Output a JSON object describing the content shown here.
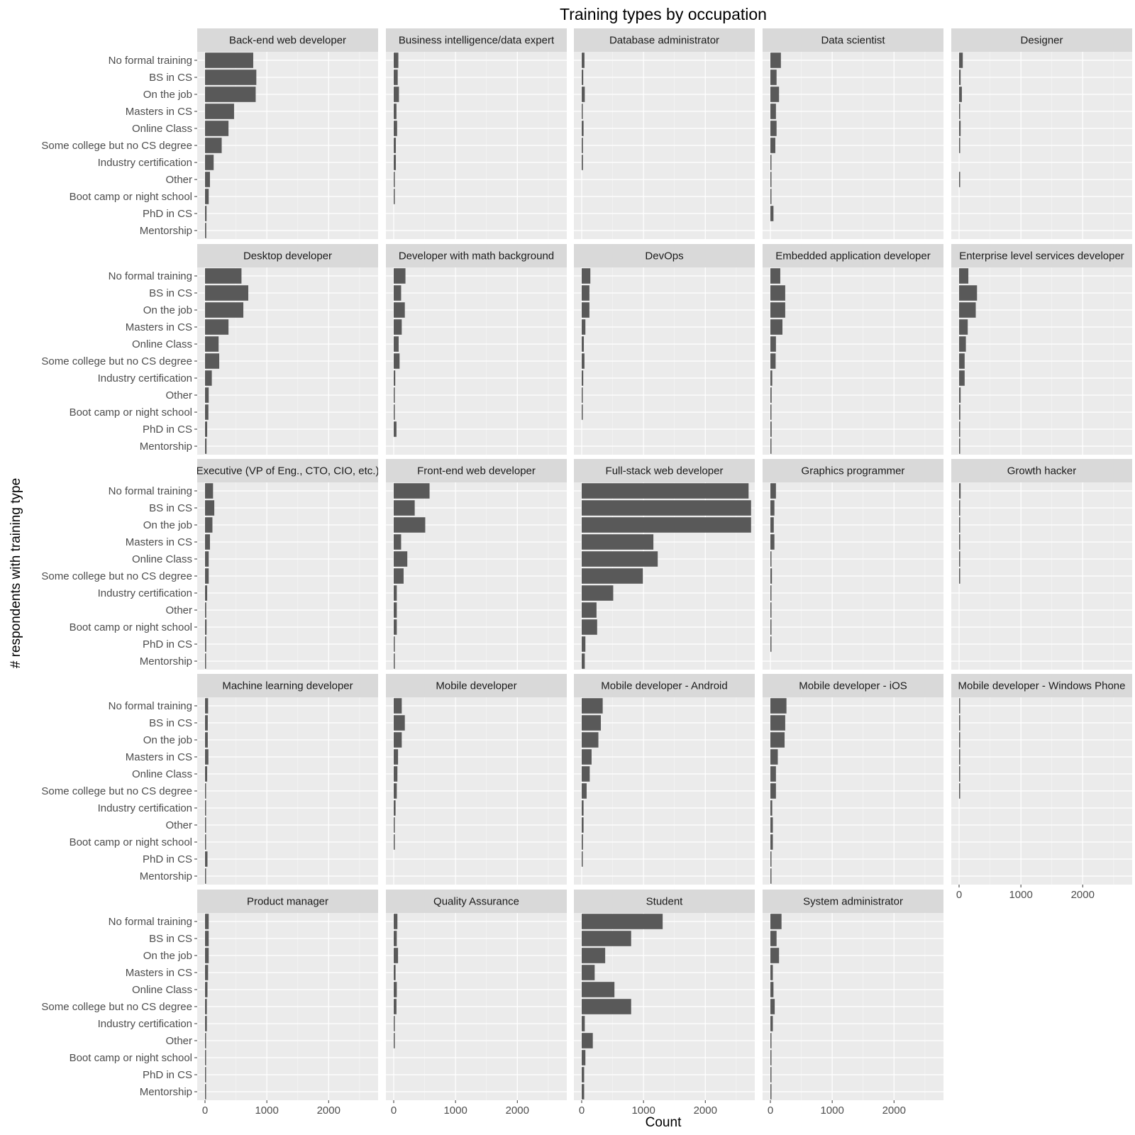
{
  "chart_data": {
    "type": "bar",
    "title": "Training types by occupation",
    "xlabel": "Count",
    "ylabel": "# respondents with training type",
    "xlim": [
      0,
      2800
    ],
    "xticks": [
      0,
      1000,
      2000
    ],
    "grid": true,
    "categories": [
      "No formal training",
      "BS in CS",
      "On the job",
      "Masters in CS",
      "Online Class",
      "Some college  but no CS degree",
      "Industry certification",
      "Other",
      "Boot camp or night school",
      "PhD in CS",
      "Mentorship"
    ],
    "panels": [
      {
        "name": "Back-end web developer",
        "values": [
          780,
          830,
          820,
          470,
          380,
          270,
          140,
          80,
          60,
          25,
          20
        ]
      },
      {
        "name": "Business intelligence/data expert",
        "values": [
          75,
          65,
          85,
          45,
          55,
          35,
          35,
          15,
          10,
          0,
          0
        ]
      },
      {
        "name": "Database administrator",
        "values": [
          45,
          25,
          50,
          15,
          30,
          20,
          20,
          0,
          0,
          0,
          0
        ]
      },
      {
        "name": "Data scientist",
        "values": [
          170,
          100,
          140,
          90,
          100,
          80,
          10,
          10,
          10,
          50,
          0
        ]
      },
      {
        "name": "Designer",
        "values": [
          60,
          25,
          45,
          15,
          25,
          15,
          0,
          15,
          0,
          0,
          0
        ]
      },
      {
        "name": "Desktop developer",
        "values": [
          590,
          700,
          620,
          380,
          220,
          230,
          110,
          60,
          55,
          35,
          25
        ]
      },
      {
        "name": "Developer with math background",
        "values": [
          190,
          120,
          180,
          130,
          80,
          95,
          25,
          10,
          15,
          45,
          0
        ]
      },
      {
        "name": "DevOps",
        "values": [
          140,
          125,
          125,
          60,
          35,
          45,
          25,
          10,
          15,
          0,
          0
        ]
      },
      {
        "name": "Embedded application developer",
        "values": [
          160,
          240,
          240,
          195,
          90,
          85,
          30,
          20,
          15,
          20,
          10
        ]
      },
      {
        "name": "Enterprise level services developer",
        "values": [
          150,
          290,
          270,
          140,
          110,
          90,
          90,
          25,
          20,
          15,
          10
        ]
      },
      {
        "name": "Executive (VP of Eng., CTO, CIO, etc.)",
        "values": [
          130,
          150,
          120,
          80,
          60,
          60,
          35,
          20,
          25,
          20,
          10
        ]
      },
      {
        "name": "Front-end web developer",
        "values": [
          580,
          340,
          510,
          120,
          220,
          160,
          50,
          50,
          50,
          10,
          10
        ]
      },
      {
        "name": "Full-stack web developer",
        "values": [
          2700,
          2740,
          2740,
          1160,
          1230,
          990,
          510,
          240,
          250,
          60,
          50
        ]
      },
      {
        "name": "Graphics programmer",
        "values": [
          90,
          65,
          55,
          65,
          15,
          25,
          10,
          10,
          10,
          10,
          0
        ]
      },
      {
        "name": "Growth hacker",
        "values": [
          25,
          15,
          15,
          10,
          10,
          10,
          0,
          0,
          0,
          0,
          0
        ]
      },
      {
        "name": "Machine learning developer",
        "values": [
          50,
          45,
          45,
          55,
          35,
          10,
          10,
          10,
          10,
          40,
          5
        ]
      },
      {
        "name": "Mobile developer",
        "values": [
          130,
          180,
          130,
          70,
          60,
          50,
          30,
          10,
          10,
          0,
          0
        ]
      },
      {
        "name": "Mobile developer - Android",
        "values": [
          340,
          310,
          270,
          160,
          130,
          80,
          30,
          30,
          20,
          15,
          0
        ]
      },
      {
        "name": "Mobile developer - iOS",
        "values": [
          260,
          240,
          230,
          120,
          90,
          90,
          30,
          40,
          40,
          10,
          10
        ]
      },
      {
        "name": "Mobile developer - Windows Phone",
        "values": [
          15,
          10,
          10,
          5,
          10,
          10,
          0,
          0,
          0,
          0,
          0
        ]
      },
      {
        "name": "Product manager",
        "values": [
          60,
          60,
          60,
          50,
          40,
          30,
          30,
          10,
          10,
          10,
          10
        ]
      },
      {
        "name": "Quality Assurance",
        "values": [
          60,
          50,
          70,
          30,
          50,
          45,
          10,
          10,
          0,
          0,
          0
        ]
      },
      {
        "name": "Student",
        "values": [
          1310,
          800,
          380,
          210,
          530,
          800,
          50,
          180,
          60,
          40,
          40
        ]
      },
      {
        "name": "System administrator",
        "values": [
          180,
          100,
          140,
          40,
          50,
          70,
          40,
          10,
          10,
          10,
          5
        ]
      }
    ],
    "colors": {
      "bar": "#595959",
      "panel_bg": "#ebebeb",
      "grid_major": "#ffffff",
      "grid_minor": "#f5f5f5",
      "strip_bg": "#d9d9d9",
      "tick_text": "#4d4d4d",
      "tick_mark": "#333333",
      "text": "#000000"
    }
  }
}
